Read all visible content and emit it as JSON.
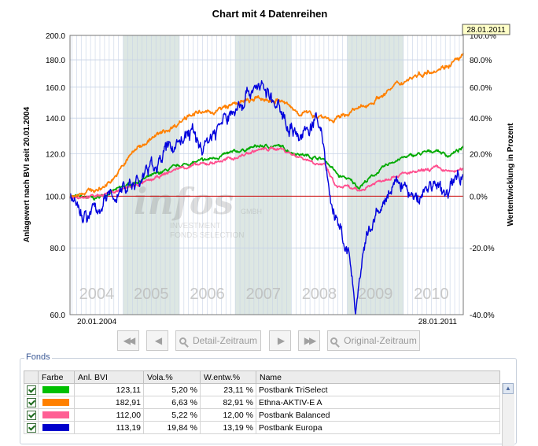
{
  "chart_data": {
    "type": "line",
    "title": "Chart mit 4 Datenreihen",
    "ylabel_left": "Anlagewert nach BVI seit 20.01.2004",
    "ylabel_right": "Wertentwicklung in Prozent",
    "y_scale": "log",
    "ylim_left": [
      60,
      200
    ],
    "ylim_right": [
      -40,
      100
    ],
    "yticks_left": [
      "200.0",
      "180.0",
      "160.0",
      "140.0",
      "120.0",
      "100.0",
      "80.0",
      "60.0"
    ],
    "yticks_right": [
      "100.0%",
      "80.0%",
      "60.0%",
      "40.0%",
      "20.0%",
      "0.0%",
      "-20.0%",
      "-40.0%"
    ],
    "x_range": [
      "20.01.2004",
      "28.01.2011"
    ],
    "x_start_label": "20.01.2004",
    "x_end_label": "28.01.2011",
    "date_marker": "28.01.2011",
    "year_labels": [
      "2004",
      "2005",
      "2006",
      "2007",
      "2008",
      "2009",
      "2010"
    ],
    "shaded_years": [
      "2005",
      "2007",
      "2009"
    ],
    "baseline": 100,
    "grid": true,
    "watermark": {
      "brand": "infos",
      "sub1": "GMBH",
      "sub2": "INVESTMENT",
      "sub3": "FONDS SELECTION"
    },
    "series": [
      {
        "name": "Postbank TriSelect",
        "color": "#00aa00",
        "points": [
          [
            2004.05,
            100
          ],
          [
            2004.5,
            99
          ],
          [
            2005.0,
            104
          ],
          [
            2005.5,
            109
          ],
          [
            2006.0,
            114
          ],
          [
            2006.5,
            117
          ],
          [
            2007.0,
            121
          ],
          [
            2007.4,
            124
          ],
          [
            2007.8,
            124
          ],
          [
            2008.0,
            121
          ],
          [
            2008.3,
            119
          ],
          [
            2008.6,
            117
          ],
          [
            2008.85,
            109
          ],
          [
            2009.0,
            108
          ],
          [
            2009.2,
            104
          ],
          [
            2009.5,
            110
          ],
          [
            2009.8,
            116
          ],
          [
            2010.0,
            118
          ],
          [
            2010.3,
            120
          ],
          [
            2010.6,
            122
          ],
          [
            2010.8,
            119
          ],
          [
            2011.07,
            123
          ]
        ]
      },
      {
        "name": "Ethna-AKTIV-E A",
        "color": "#ff8000",
        "points": [
          [
            2004.05,
            100
          ],
          [
            2004.3,
            102
          ],
          [
            2004.6,
            103
          ],
          [
            2004.9,
            110
          ],
          [
            2005.2,
            122
          ],
          [
            2005.5,
            128
          ],
          [
            2005.9,
            135
          ],
          [
            2006.2,
            143
          ],
          [
            2006.5,
            143
          ],
          [
            2006.8,
            146
          ],
          [
            2007.0,
            149
          ],
          [
            2007.4,
            152
          ],
          [
            2007.8,
            151
          ],
          [
            2008.1,
            144
          ],
          [
            2008.4,
            142
          ],
          [
            2008.6,
            141
          ],
          [
            2008.75,
            138
          ],
          [
            2009.0,
            143
          ],
          [
            2009.3,
            147
          ],
          [
            2009.6,
            154
          ],
          [
            2009.9,
            162
          ],
          [
            2010.2,
            168
          ],
          [
            2010.5,
            172
          ],
          [
            2010.8,
            176
          ],
          [
            2011.07,
            183
          ]
        ]
      },
      {
        "name": "Postbank Balanced",
        "color": "#ff4f8f",
        "points": [
          [
            2004.05,
            100
          ],
          [
            2004.5,
            100
          ],
          [
            2005.0,
            103
          ],
          [
            2005.5,
            107
          ],
          [
            2006.0,
            113
          ],
          [
            2006.5,
            115
          ],
          [
            2007.0,
            118
          ],
          [
            2007.4,
            122
          ],
          [
            2007.8,
            123
          ],
          [
            2008.0,
            120
          ],
          [
            2008.3,
            117
          ],
          [
            2008.6,
            114
          ],
          [
            2008.8,
            104
          ],
          [
            2009.0,
            104
          ],
          [
            2009.2,
            102
          ],
          [
            2009.5,
            106
          ],
          [
            2009.8,
            109
          ],
          [
            2010.0,
            110
          ],
          [
            2010.3,
            111
          ],
          [
            2010.6,
            113
          ],
          [
            2010.8,
            111
          ],
          [
            2011.07,
            112
          ]
        ]
      },
      {
        "name": "Postbank Europa",
        "color": "#0000dd",
        "points": [
          [
            2004.05,
            99
          ],
          [
            2004.35,
            91
          ],
          [
            2004.7,
            98
          ],
          [
            2005.0,
            104
          ],
          [
            2005.3,
            107
          ],
          [
            2005.6,
            116
          ],
          [
            2005.9,
            125
          ],
          [
            2006.2,
            132
          ],
          [
            2006.4,
            123
          ],
          [
            2006.7,
            135
          ],
          [
            2007.0,
            145
          ],
          [
            2007.3,
            160
          ],
          [
            2007.45,
            162
          ],
          [
            2007.7,
            148
          ],
          [
            2008.0,
            135
          ],
          [
            2008.2,
            128
          ],
          [
            2008.4,
            139
          ],
          [
            2008.55,
            130
          ],
          [
            2008.7,
            98
          ],
          [
            2008.85,
            86
          ],
          [
            2009.0,
            80
          ],
          [
            2009.15,
            61
          ],
          [
            2009.35,
            83
          ],
          [
            2009.6,
            95
          ],
          [
            2009.8,
            103
          ],
          [
            2010.0,
            106
          ],
          [
            2010.2,
            97
          ],
          [
            2010.5,
            106
          ],
          [
            2010.75,
            100
          ],
          [
            2011.07,
            113
          ]
        ]
      }
    ]
  },
  "nav": {
    "detail_label": "Detail-Zeitraum",
    "original_label": "Original-Zeitraum"
  },
  "fonds": {
    "legend": "Fonds",
    "headers": {
      "farbe": "Farbe",
      "bvi": "Anl. BVI",
      "vola": "Vola.%",
      "wentw": "W.entw.%",
      "name": "Name"
    },
    "rows": [
      {
        "color": "#00c000",
        "bvi": "123,11",
        "vola": "5,20 %",
        "wentw": "23,11 %",
        "name": "Postbank TriSelect"
      },
      {
        "color": "#ff8000",
        "bvi": "182,91",
        "vola": "6,63 %",
        "wentw": "82,91 %",
        "name": "Ethna-AKTIV-E A"
      },
      {
        "color": "#ff5f94",
        "bvi": "112,00",
        "vola": "5,22 %",
        "wentw": "12,00 %",
        "name": "Postbank Balanced"
      },
      {
        "color": "#0000cc",
        "bvi": "113,19",
        "vola": "19,84 %",
        "wentw": "13,19 %",
        "name": "Postbank Europa"
      }
    ]
  }
}
